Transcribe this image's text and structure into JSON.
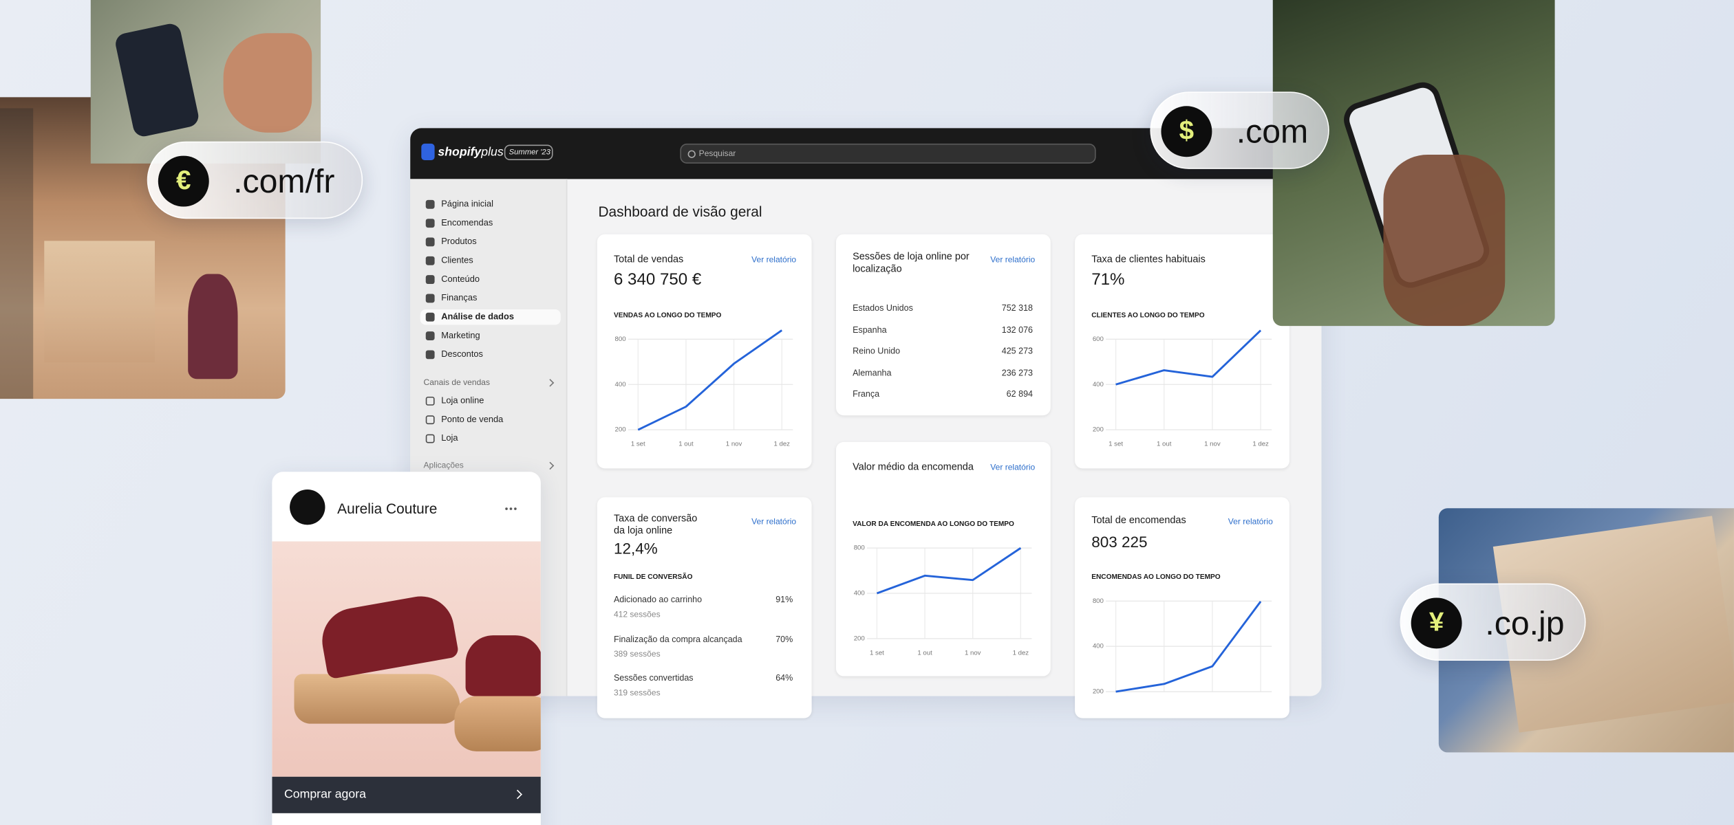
{
  "badges": [
    {
      "symbol": "€",
      "domain": ".com/fr"
    },
    {
      "symbol": "$",
      "domain": ".com"
    },
    {
      "symbol": "¥",
      "domain": ".co.jp"
    }
  ],
  "topbar": {
    "logo": "shopify",
    "logo_suffix": "plus",
    "edition": "Summer '23",
    "search": "Pesquisar"
  },
  "sidebar": {
    "items": [
      "Página inicial",
      "Encomendas",
      "Produtos",
      "Clientes",
      "Conteúdo",
      "Finanças",
      "Análise de dados",
      "Marketing",
      "Descontos"
    ],
    "active": 6,
    "sales_channels_title": "Canais de vendas",
    "sales_channels": [
      "Loja online",
      "Ponto de venda",
      "Loja"
    ],
    "apps_title": "Aplicações"
  },
  "dashboard": {
    "title": "Dashboard de visão geral",
    "cards": [
      {
        "title": "Total de vendas",
        "link": "Ver relatório",
        "value": "6 340 750 €",
        "chart": {
          "type": "line",
          "label": "VENDAS AO LONGO DO TEMPO",
          "categories": [
            "1 set",
            "1 out",
            "1 nov",
            "1 dez"
          ],
          "values": [
            200,
            285,
            550,
            917
          ],
          "ylim": [
            200,
            800
          ],
          "yticks": [
            200,
            400,
            800
          ],
          "log": true,
          "color": "#2463d9"
        }
      },
      {
        "title": "Sessões de loja online por localização",
        "link": "Ver relatório",
        "rows": [
          [
            "Estados Unidos",
            "752 318"
          ],
          [
            "Espanha",
            "132 076"
          ],
          [
            "Reino Unido",
            "425 273"
          ],
          [
            "Alemanha",
            "236 273"
          ],
          [
            "França",
            "62 894"
          ]
        ]
      },
      {
        "title": "Taxa de clientes habituais",
        "value": "71%",
        "chart": {
          "type": "line",
          "label": "CLIENTES AO LONGO DO TEMPO",
          "categories": [
            "1 set",
            "1 out",
            "1 nov",
            "1 dez"
          ],
          "values": [
            400,
            463,
            434,
            639
          ],
          "ylim": [
            200,
            600
          ],
          "yticks": [
            200,
            400,
            600
          ],
          "log": false,
          "color": "#2463d9"
        }
      },
      {
        "title": "Valor médio da encomenda",
        "link": "Ver relatório",
        "chart": {
          "type": "line",
          "label": "VALOR DA ENCOMENDA AO LONGO DO TEMPO",
          "categories": [
            "1 set",
            "1 out",
            "1 nov",
            "1 dez"
          ],
          "values": [
            400,
            524,
            490,
            800
          ],
          "ylim": [
            200,
            800
          ],
          "yticks": [
            200,
            400,
            800
          ],
          "log": true,
          "color": "#2463d9"
        }
      },
      {
        "title": "Taxa de conversão da loja online",
        "link": "Ver relatório",
        "value": "12,4%",
        "funnel_title": "FUNIL DE CONVERSÃO",
        "rows": [
          {
            "label": "Adicionado ao carrinho",
            "sessions": "412 sessões",
            "value": "91%"
          },
          {
            "label": "Finalização da compra alcançada",
            "sessions": "389 sessões",
            "value": "70%"
          },
          {
            "label": "Sessões convertidas",
            "sessions": "319 sessões",
            "value": "64%"
          }
        ]
      },
      {
        "title": "Total de encomendas",
        "link": "Ver relatório",
        "value": "803 225",
        "chart": {
          "type": "line",
          "label": "ENCOMENDAS AO LONGO DO TEMPO",
          "categories": [
            null,
            null,
            null,
            null
          ],
          "values": [
            200,
            225,
            295,
            795
          ],
          "ylim": [
            200,
            800
          ],
          "yticks": [
            200,
            400,
            800
          ],
          "log": true,
          "color": "#2463d9"
        }
      }
    ]
  },
  "product": {
    "brand": "Aurelia Couture",
    "cta": "Comprar agora"
  }
}
